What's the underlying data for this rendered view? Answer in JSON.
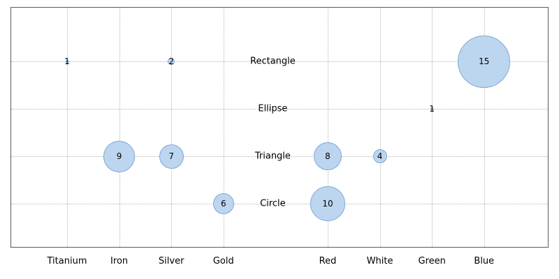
{
  "chart_data": {
    "type": "bubble",
    "title": "",
    "x_categories": [
      "Titanium",
      "Iron",
      "Silver",
      "Gold",
      "",
      "Red",
      "White",
      "Green",
      "Blue"
    ],
    "y_categories": [
      "Rectangle",
      "Ellipse",
      "Triangle",
      "Circle"
    ],
    "points": [
      {
        "x": "Titanium",
        "y": "Rectangle",
        "value": 1
      },
      {
        "x": "Silver",
        "y": "Rectangle",
        "value": 2
      },
      {
        "x": "Blue",
        "y": "Rectangle",
        "value": 15
      },
      {
        "x": "Green",
        "y": "Ellipse",
        "value": 1
      },
      {
        "x": "Iron",
        "y": "Triangle",
        "value": 9
      },
      {
        "x": "Silver",
        "y": "Triangle",
        "value": 7
      },
      {
        "x": "Red",
        "y": "Triangle",
        "value": 8
      },
      {
        "x": "White",
        "y": "Triangle",
        "value": 4
      },
      {
        "x": "Gold",
        "y": "Circle",
        "value": 6
      },
      {
        "x": "Red",
        "y": "Circle",
        "value": 10
      }
    ],
    "style": {
      "bubble_fill": "#bcd6f0",
      "bubble_border": "#7fa8d4",
      "grid_color": "#b5b5b5",
      "border_color": "#5a5a5a",
      "text_color": "#000000",
      "radius_per_unit": 2.5
    },
    "grid": true,
    "legend": "none"
  }
}
